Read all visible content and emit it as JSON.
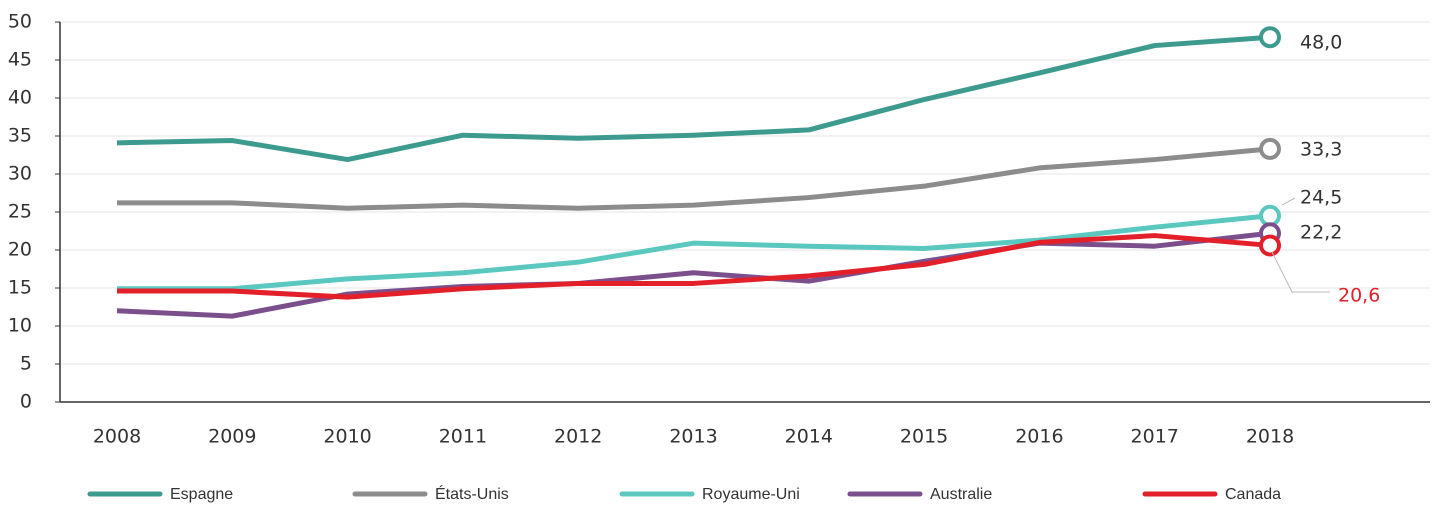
{
  "chart_data": {
    "type": "line",
    "x": [
      "2008",
      "2009",
      "2010",
      "2011",
      "2012",
      "2013",
      "2014",
      "2015",
      "2016",
      "2017",
      "2018"
    ],
    "ylim": [
      0,
      50
    ],
    "yticks": [
      0,
      5,
      10,
      15,
      20,
      25,
      30,
      35,
      40,
      45,
      50
    ],
    "grid": true,
    "series": [
      {
        "name": "Espagne",
        "color": "#3d9a8f",
        "values": [
          34.1,
          34.4,
          31.9,
          35.1,
          34.7,
          35.1,
          35.8,
          39.8,
          43.3,
          46.9,
          48.0
        ],
        "value_labels": [
          null,
          null,
          null,
          null,
          null,
          null,
          null,
          null,
          null,
          null,
          "48,0"
        ]
      },
      {
        "name": "États-Unis",
        "color": "#8c8c8c",
        "values": [
          26.2,
          26.2,
          25.5,
          25.9,
          25.5,
          25.9,
          26.9,
          28.4,
          30.8,
          31.9,
          33.3
        ],
        "value_labels": [
          null,
          null,
          null,
          null,
          null,
          null,
          null,
          null,
          null,
          null,
          "33,3"
        ]
      },
      {
        "name": "Royaume-Uni",
        "color": "#5bc8c0",
        "values": [
          14.9,
          14.9,
          16.2,
          17.0,
          18.4,
          20.9,
          20.5,
          20.2,
          21.3,
          23.0,
          24.5
        ],
        "value_labels": [
          null,
          null,
          null,
          null,
          null,
          null,
          null,
          null,
          null,
          null,
          "24,5"
        ]
      },
      {
        "name": "Australie",
        "color": "#7b4f8c",
        "values": [
          12.0,
          11.3,
          14.2,
          15.2,
          15.6,
          17.0,
          15.9,
          18.5,
          20.9,
          20.5,
          22.2
        ],
        "value_labels": [
          null,
          null,
          null,
          null,
          null,
          null,
          null,
          null,
          null,
          null,
          "22,2"
        ]
      },
      {
        "name": "Canada",
        "color": "#e3202a",
        "values": [
          14.6,
          14.6,
          13.8,
          14.9,
          15.6,
          15.6,
          16.6,
          18.1,
          21.0,
          21.9,
          20.6
        ],
        "value_labels": [
          null,
          null,
          null,
          null,
          null,
          null,
          null,
          null,
          null,
          null,
          "20,6"
        ]
      }
    ]
  }
}
